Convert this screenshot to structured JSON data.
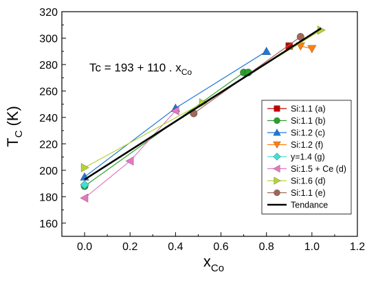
{
  "chart_data": {
    "type": "scatter",
    "title": "",
    "ylabel": "T",
    "ylabel_sub": "C",
    "ylabel_unit": "(K)",
    "xlabel": "x",
    "xlabel_sub": "Co",
    "xlim": [
      -0.1,
      1.2
    ],
    "ylim": [
      150,
      320
    ],
    "xticks": [
      0.0,
      0.2,
      0.4,
      0.6,
      0.8,
      1.0,
      1.2
    ],
    "xtick_labels": [
      "0.0",
      "0.2",
      "0.4",
      "0.6",
      "0.8",
      "1.0",
      "1.2"
    ],
    "yticks": [
      160,
      180,
      200,
      220,
      240,
      260,
      280,
      300,
      320
    ],
    "ytick_labels": [
      "160",
      "180",
      "200",
      "220",
      "240",
      "260",
      "280",
      "300",
      "320"
    ],
    "grid": false,
    "legend_position": "right",
    "annotation": {
      "text": "Tc = 193 + 110 . x",
      "sub": "Co"
    },
    "series": [
      {
        "name": "Si:1.1 (a)",
        "color": "#c00000",
        "marker": "square",
        "x": [
          0.9
        ],
        "y": [
          294
        ]
      },
      {
        "name": "Si:1.1 (b)",
        "color": "#2ca02c",
        "marker": "circle",
        "x": [
          0.0,
          0.7,
          0.72
        ],
        "y": [
          188,
          274,
          274
        ]
      },
      {
        "name": "Si:1.2 (c)",
        "color": "#1f77d4",
        "marker": "triangle-up",
        "x": [
          0.0,
          0.4,
          0.8
        ],
        "y": [
          195,
          247,
          290
        ]
      },
      {
        "name": "Si:1.2 (f)",
        "color": "#ff7f0e",
        "marker": "triangle-down",
        "x": [
          0.95,
          1.0
        ],
        "y": [
          294,
          292
        ]
      },
      {
        "name": "y=1.4 (g)",
        "color": "#40e0d0",
        "marker": "diamond",
        "x": [
          0.0
        ],
        "y": [
          189
        ]
      },
      {
        "name": "Si:1.5 + Ce (d)",
        "color": "#e377c2",
        "marker": "triangle-left",
        "x": [
          0.0,
          0.2,
          0.4
        ],
        "y": [
          179,
          207,
          245
        ]
      },
      {
        "name": "Si:1.6 (d)",
        "color": "#b5d334",
        "marker": "triangle-right",
        "x": [
          0.0,
          0.52,
          1.04
        ],
        "y": [
          202,
          251,
          306
        ]
      },
      {
        "name": "Si:1.1 (e)",
        "color": "#a0665a",
        "marker": "circle",
        "x": [
          0.48,
          0.95
        ],
        "y": [
          243,
          301
        ]
      },
      {
        "name": "Tendance",
        "color": "#000000",
        "marker": "none",
        "x": [
          0.0,
          1.04
        ],
        "y": [
          193,
          307.4
        ]
      }
    ]
  }
}
